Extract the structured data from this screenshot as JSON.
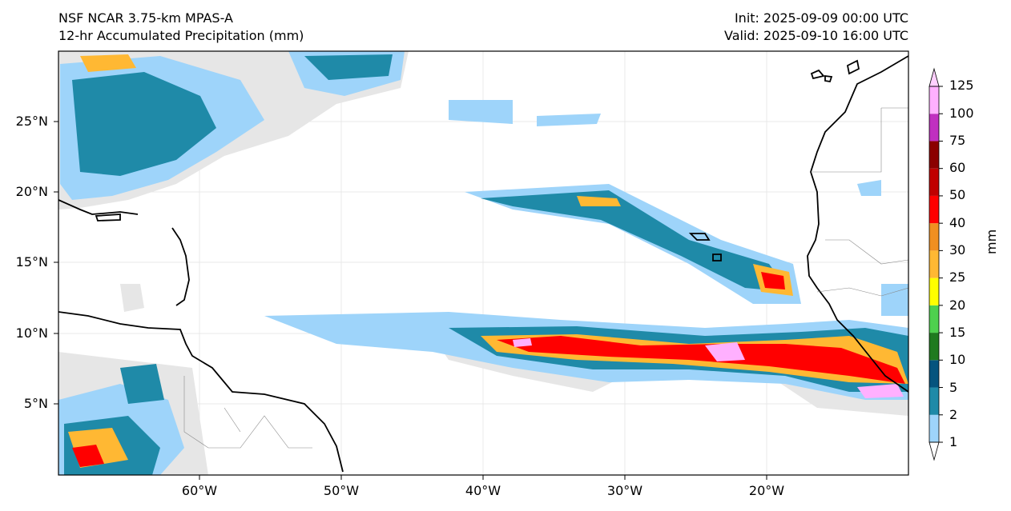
{
  "header": {
    "model_name": "NSF NCAR 3.75-km MPAS-A",
    "field_name": "12-hr Accumulated Precipitation (mm)",
    "init_time": "Init: 2025-09-09 00:00 UTC",
    "valid_time": "Valid: 2025-09-10 16:00 UTC"
  },
  "axes": {
    "lat_labels": [
      "25°N",
      "20°N",
      "15°N",
      "10°N",
      "5°N"
    ],
    "lon_labels": [
      "60°W",
      "50°W",
      "40°W",
      "30°W",
      "20°W"
    ]
  },
  "colorbar": {
    "unit_label": "mm",
    "levels": [
      "1",
      "2",
      "5",
      "10",
      "15",
      "20",
      "25",
      "30",
      "40",
      "50",
      "60",
      "75",
      "100",
      "125"
    ],
    "colors": [
      "#e6e6e6",
      "#9ed4fa",
      "#1f8aa8",
      "#05547e",
      "#1f7a1f",
      "#4ed04e",
      "#ffff00",
      "#ffb833",
      "#f08f20",
      "#ff0000",
      "#c00000",
      "#8b0000",
      "#c030c0",
      "#ffb0ff"
    ],
    "under_color": "#ffffff",
    "over_color": "#ffd0ff"
  },
  "colors": {
    "coastline": "#000000",
    "border": "#888888",
    "gridline": "#cfcfcf"
  }
}
